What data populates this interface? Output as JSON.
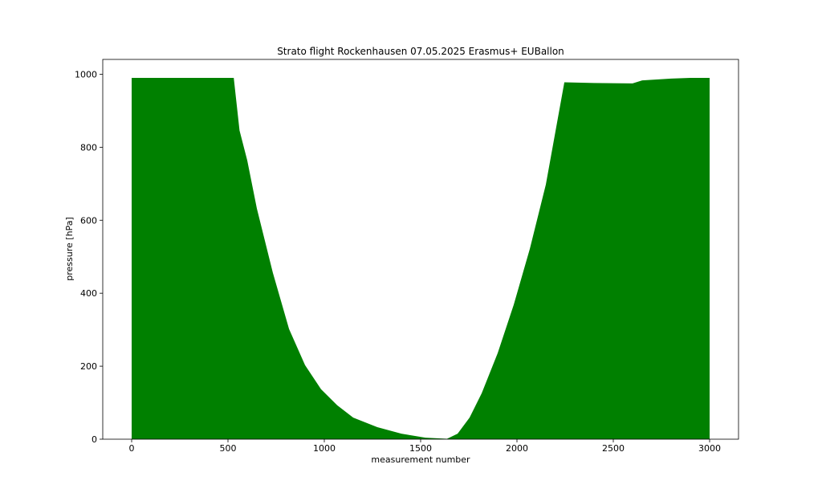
{
  "chart_data": {
    "type": "area",
    "title": "Strato flight Rockenhausen 07.05.2025 Erasmus+ EUBallon",
    "xlabel": "measurement number",
    "ylabel": "pressure [hPa]",
    "color": "#008000",
    "x": [
      0,
      530,
      560,
      600,
      650,
      733,
      817,
      900,
      983,
      1067,
      1150,
      1275,
      1400,
      1525,
      1637,
      1692,
      1754,
      1817,
      1900,
      1983,
      2067,
      2150,
      2246,
      2400,
      2600,
      2650,
      2800,
      2900,
      3000
    ],
    "values": [
      990,
      990,
      846,
      764,
      632,
      456,
      302,
      203,
      137,
      93,
      59,
      33,
      15,
      4,
      1,
      15,
      59,
      126,
      236,
      368,
      522,
      698,
      978,
      976,
      975,
      983,
      988,
      990,
      990
    ],
    "xlim": [
      -150,
      3150
    ],
    "ylim": [
      0,
      1040.6
    ],
    "xticks": [
      0,
      500,
      1000,
      1500,
      2000,
      2500,
      3000
    ],
    "yticks": [
      0,
      200,
      400,
      600,
      800,
      1000
    ]
  }
}
